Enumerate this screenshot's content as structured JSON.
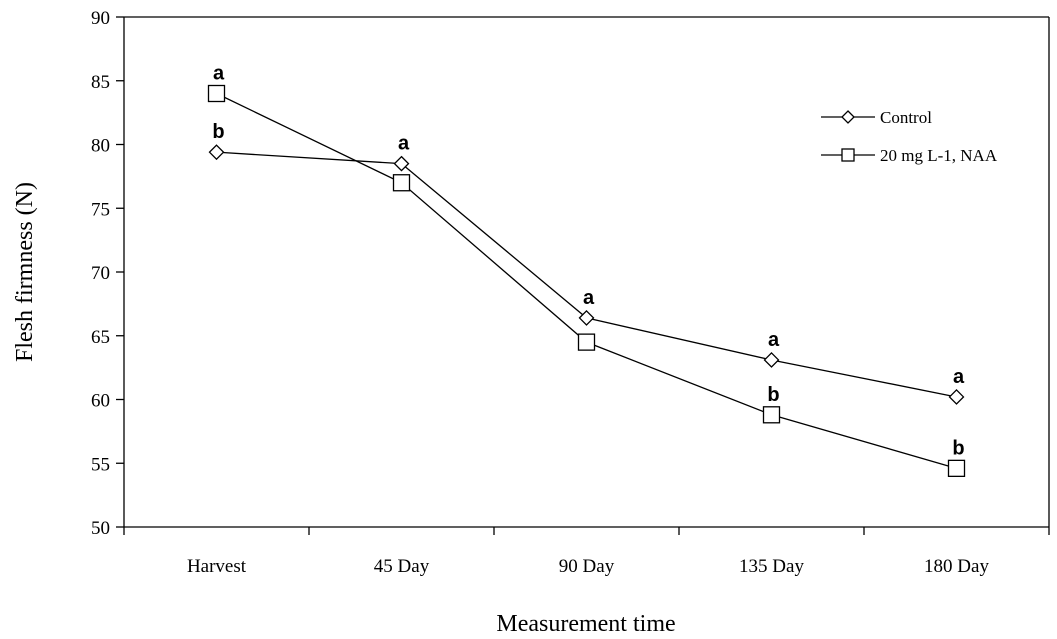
{
  "chart_data": {
    "type": "line",
    "categories": [
      "Harvest",
      "45 Day",
      "90 Day",
      "135 Day",
      "180 Day"
    ],
    "xlabel": "Measurement time",
    "ylabel": "Flesh firmness (N)",
    "ylim": [
      50,
      90
    ],
    "yticks": [
      "50",
      "55",
      "60",
      "65",
      "70",
      "75",
      "80",
      "85",
      "90"
    ],
    "grid": false,
    "legend_position": "top-right",
    "series": [
      {
        "name": "Control",
        "marker": "diamond",
        "values": [
          79.4,
          78.5,
          66.4,
          63.1,
          60.2
        ],
        "labels": [
          "b",
          "a",
          "a",
          "a",
          "a"
        ]
      },
      {
        "name": "20 mg L-1, NAA",
        "marker": "square",
        "values": [
          84.0,
          77.0,
          64.5,
          58.8,
          54.6
        ],
        "labels": [
          "a",
          "",
          "",
          "b",
          "b"
        ]
      }
    ]
  }
}
